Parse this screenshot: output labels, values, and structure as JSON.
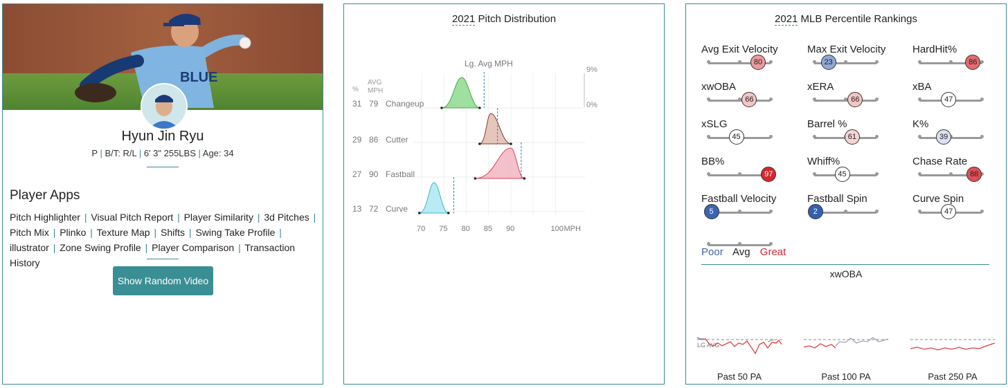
{
  "player": {
    "name": "Hyun Jin Ryu",
    "position": "P",
    "bats_throws": "B/T: R/L",
    "height_weight": "6' 3\" 255LBS",
    "age": "Age: 34",
    "apps_title": "Player Apps",
    "apps": [
      "Pitch Highlighter",
      "Visual Pitch Report",
      "Player Similarity",
      "3d Pitches",
      "Pitch Mix",
      "Plinko",
      "Texture Map",
      "Shifts",
      "Swing Take Profile",
      "illustrator",
      "Zone Swing Profile",
      "Player Comparison",
      "Transaction History"
    ],
    "button_label": "Show Random Video",
    "jersey_text": "BLUE"
  },
  "pitch_distribution": {
    "title_year": "2021",
    "title_rest": " Pitch Distribution",
    "lg_avg_label": "Lg. Avg MPH",
    "col_pct": "%",
    "col_avg": "AVG",
    "col_mph": "MPH",
    "scale_top": "9%",
    "scale_bottom": "0%",
    "x_unit": "MPH",
    "x_ticks": [
      "70",
      "75",
      "80",
      "85",
      "90",
      "100"
    ],
    "pitches": [
      {
        "pct": "31",
        "mph": "79",
        "name": "Changeup",
        "color": "#8fd98f",
        "stroke": "#3cae3c",
        "min": 74.5,
        "max": 83.0,
        "peak": 79.0,
        "lg_avg": 84.0
      },
      {
        "pct": "29",
        "mph": "86",
        "name": "Cutter",
        "color": "#e0bcb0",
        "stroke": "#8a3a2a",
        "min": 83.0,
        "max": 90.0,
        "peak": 85.5,
        "lg_avg": 87.0
      },
      {
        "pct": "27",
        "mph": "90",
        "name": "Fastball",
        "color": "#f2b5c0",
        "stroke": "#d9435a",
        "min": 82.0,
        "max": 93.0,
        "peak": 90.0,
        "lg_avg": 92.3
      },
      {
        "pct": "13",
        "mph": "72",
        "name": "Curve",
        "color": "#aee8f2",
        "stroke": "#37b7cf",
        "min": 69.5,
        "max": 76.0,
        "peak": 72.8,
        "lg_avg": 77.2
      }
    ]
  },
  "percentiles": {
    "title_year": "2021",
    "title_rest": " MLB Percentile Rankings",
    "metrics": [
      {
        "label": "Avg Exit Velocity",
        "value": "80",
        "color": "#ee9a9c"
      },
      {
        "label": "Max Exit Velocity",
        "value": "23",
        "color": "#8fa8d6"
      },
      {
        "label": "HardHit%",
        "value": "86",
        "color": "#e56a6f"
      },
      {
        "label": "xwOBA",
        "value": "66",
        "color": "#f3c5c6"
      },
      {
        "label": "xERA",
        "value": "66",
        "color": "#f3c5c6"
      },
      {
        "label": "xBA",
        "value": "47",
        "color": "#ffffff"
      },
      {
        "label": "xSLG",
        "value": "45",
        "color": "#ffffff"
      },
      {
        "label": "Barrel %",
        "value": "61",
        "color": "#f6d4d4"
      },
      {
        "label": "K%",
        "value": "39",
        "color": "#d9e1ef"
      },
      {
        "label": "BB%",
        "value": "97",
        "color": "#d8262f"
      },
      {
        "label": "Whiff%",
        "value": "45",
        "color": "#ffffff"
      },
      {
        "label": "Chase Rate",
        "value": "88",
        "color": "#df4f55"
      },
      {
        "label": "Fastball Velocity",
        "value": "5",
        "color": "#3b64b3"
      },
      {
        "label": "Fastball Spin",
        "value": "2",
        "color": "#3460b0"
      },
      {
        "label": "Curve Spin",
        "value": "47",
        "color": "#ffffff"
      }
    ],
    "legend": {
      "poor": "Poor",
      "avg": "Avg",
      "great": "Great"
    },
    "legend_colors": {
      "poor": "#3f63b0",
      "avg": "#222222",
      "great": "#d8262f"
    },
    "xwoba_title": "xwOBA",
    "lg_avg": "LG AVG",
    "windows": [
      "Past 50 PA",
      "Past 100 PA",
      "Past 250 PA"
    ]
  }
}
